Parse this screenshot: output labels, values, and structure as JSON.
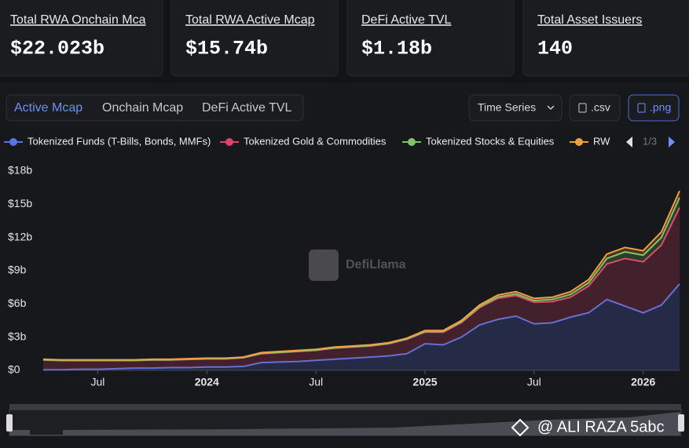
{
  "cards": [
    {
      "title": "Total RWA Onchain Mca",
      "value": "$22.023b"
    },
    {
      "title": "Total RWA Active Mcap",
      "value": "$15.74b"
    },
    {
      "title": "DeFi Active TVL",
      "value": "$1.18b"
    },
    {
      "title": "Total Asset Issuers",
      "value": "140"
    }
  ],
  "tabs": [
    "Active Mcap",
    "Onchain Mcap",
    "DeFi Active TVL"
  ],
  "buttons": {
    "view": "Time Series",
    "csv": ".csv",
    "png": ".png"
  },
  "legend_page": "1/3",
  "watermark": "DefiLlama",
  "overlay_text": "@ ALI RAZA 5abc",
  "chart_data": {
    "type": "stacked-area",
    "x": [
      "2023-04",
      "2023-05",
      "2023-06",
      "2023-07",
      "2023-08",
      "2023-09",
      "2023-10",
      "2023-11",
      "2023-12",
      "2024-01",
      "2024-02",
      "2024-03",
      "2024-04",
      "2024-05",
      "2024-06",
      "2024-07",
      "2024-08",
      "2024-09",
      "2024-10",
      "2024-11",
      "2024-12",
      "2025-01",
      "2025-02",
      "2025-03",
      "2025-04",
      "2025-05",
      "2025-06",
      "2025-07",
      "2025-08",
      "2025-09",
      "2025-10",
      "2025-11",
      "2025-12",
      "2026-01",
      "2026-02",
      "2026-03"
    ],
    "xlim": [
      "2023-04",
      "2026-03"
    ],
    "xticks": [
      {
        "value": "2023-07",
        "label": "Jul"
      },
      {
        "value": "2024-01",
        "label": "2024"
      },
      {
        "value": "2024-07",
        "label": "Jul"
      },
      {
        "value": "2025-01",
        "label": "2025"
      },
      {
        "value": "2025-07",
        "label": "Jul"
      },
      {
        "value": "2026-01",
        "label": "2026"
      }
    ],
    "ylim": [
      0,
      18
    ],
    "yticks": [
      {
        "value": 0,
        "label": "$0"
      },
      {
        "value": 3,
        "label": "$3b"
      },
      {
        "value": 6,
        "label": "$6b"
      },
      {
        "value": 9,
        "label": "$9b"
      },
      {
        "value": 12,
        "label": "$12b"
      },
      {
        "value": 15,
        "label": "$15b"
      },
      {
        "value": 18,
        "label": "$18b"
      }
    ],
    "series": [
      {
        "name": "Tokenized Funds (T-Bills, Bonds, MMFs)",
        "color": "#5b73e0",
        "values": [
          0.05,
          0.05,
          0.1,
          0.1,
          0.15,
          0.2,
          0.2,
          0.25,
          0.25,
          0.3,
          0.3,
          0.35,
          0.7,
          0.75,
          0.8,
          0.9,
          1.0,
          1.1,
          1.2,
          1.3,
          1.5,
          2.4,
          2.3,
          3.0,
          4.1,
          4.6,
          4.9,
          4.2,
          4.3,
          4.8,
          5.2,
          6.4,
          5.8,
          5.2,
          5.9,
          7.8
        ]
      },
      {
        "name": "Tokenized Gold & Commodities",
        "color": "#e0436a",
        "values": [
          0.88,
          0.83,
          0.78,
          0.78,
          0.73,
          0.68,
          0.73,
          0.68,
          0.73,
          0.73,
          0.73,
          0.78,
          0.8,
          0.85,
          0.9,
          0.9,
          1.0,
          1.0,
          1.0,
          1.1,
          1.3,
          1.05,
          1.15,
          1.3,
          1.55,
          1.9,
          1.85,
          1.95,
          1.9,
          1.8,
          2.4,
          3.2,
          4.3,
          4.6,
          5.4,
          6.9
        ]
      },
      {
        "name": "Tokenized Stocks & Equities",
        "color": "#7ec46b",
        "values": [
          0.02,
          0.02,
          0.02,
          0.02,
          0.02,
          0.02,
          0.02,
          0.02,
          0.02,
          0.02,
          0.02,
          0.02,
          0.03,
          0.03,
          0.03,
          0.03,
          0.03,
          0.03,
          0.03,
          0.03,
          0.03,
          0.05,
          0.05,
          0.08,
          0.1,
          0.12,
          0.15,
          0.15,
          0.2,
          0.25,
          0.3,
          0.5,
          0.6,
          0.6,
          0.7,
          0.9
        ]
      },
      {
        "name": "RW",
        "color": "#f0a040",
        "values": [
          0.05,
          0.05,
          0.05,
          0.05,
          0.05,
          0.05,
          0.05,
          0.05,
          0.05,
          0.05,
          0.05,
          0.05,
          0.07,
          0.07,
          0.07,
          0.07,
          0.07,
          0.07,
          0.07,
          0.07,
          0.07,
          0.1,
          0.1,
          0.12,
          0.15,
          0.18,
          0.2,
          0.2,
          0.2,
          0.25,
          0.3,
          0.4,
          0.4,
          0.4,
          0.5,
          0.6
        ]
      }
    ]
  }
}
